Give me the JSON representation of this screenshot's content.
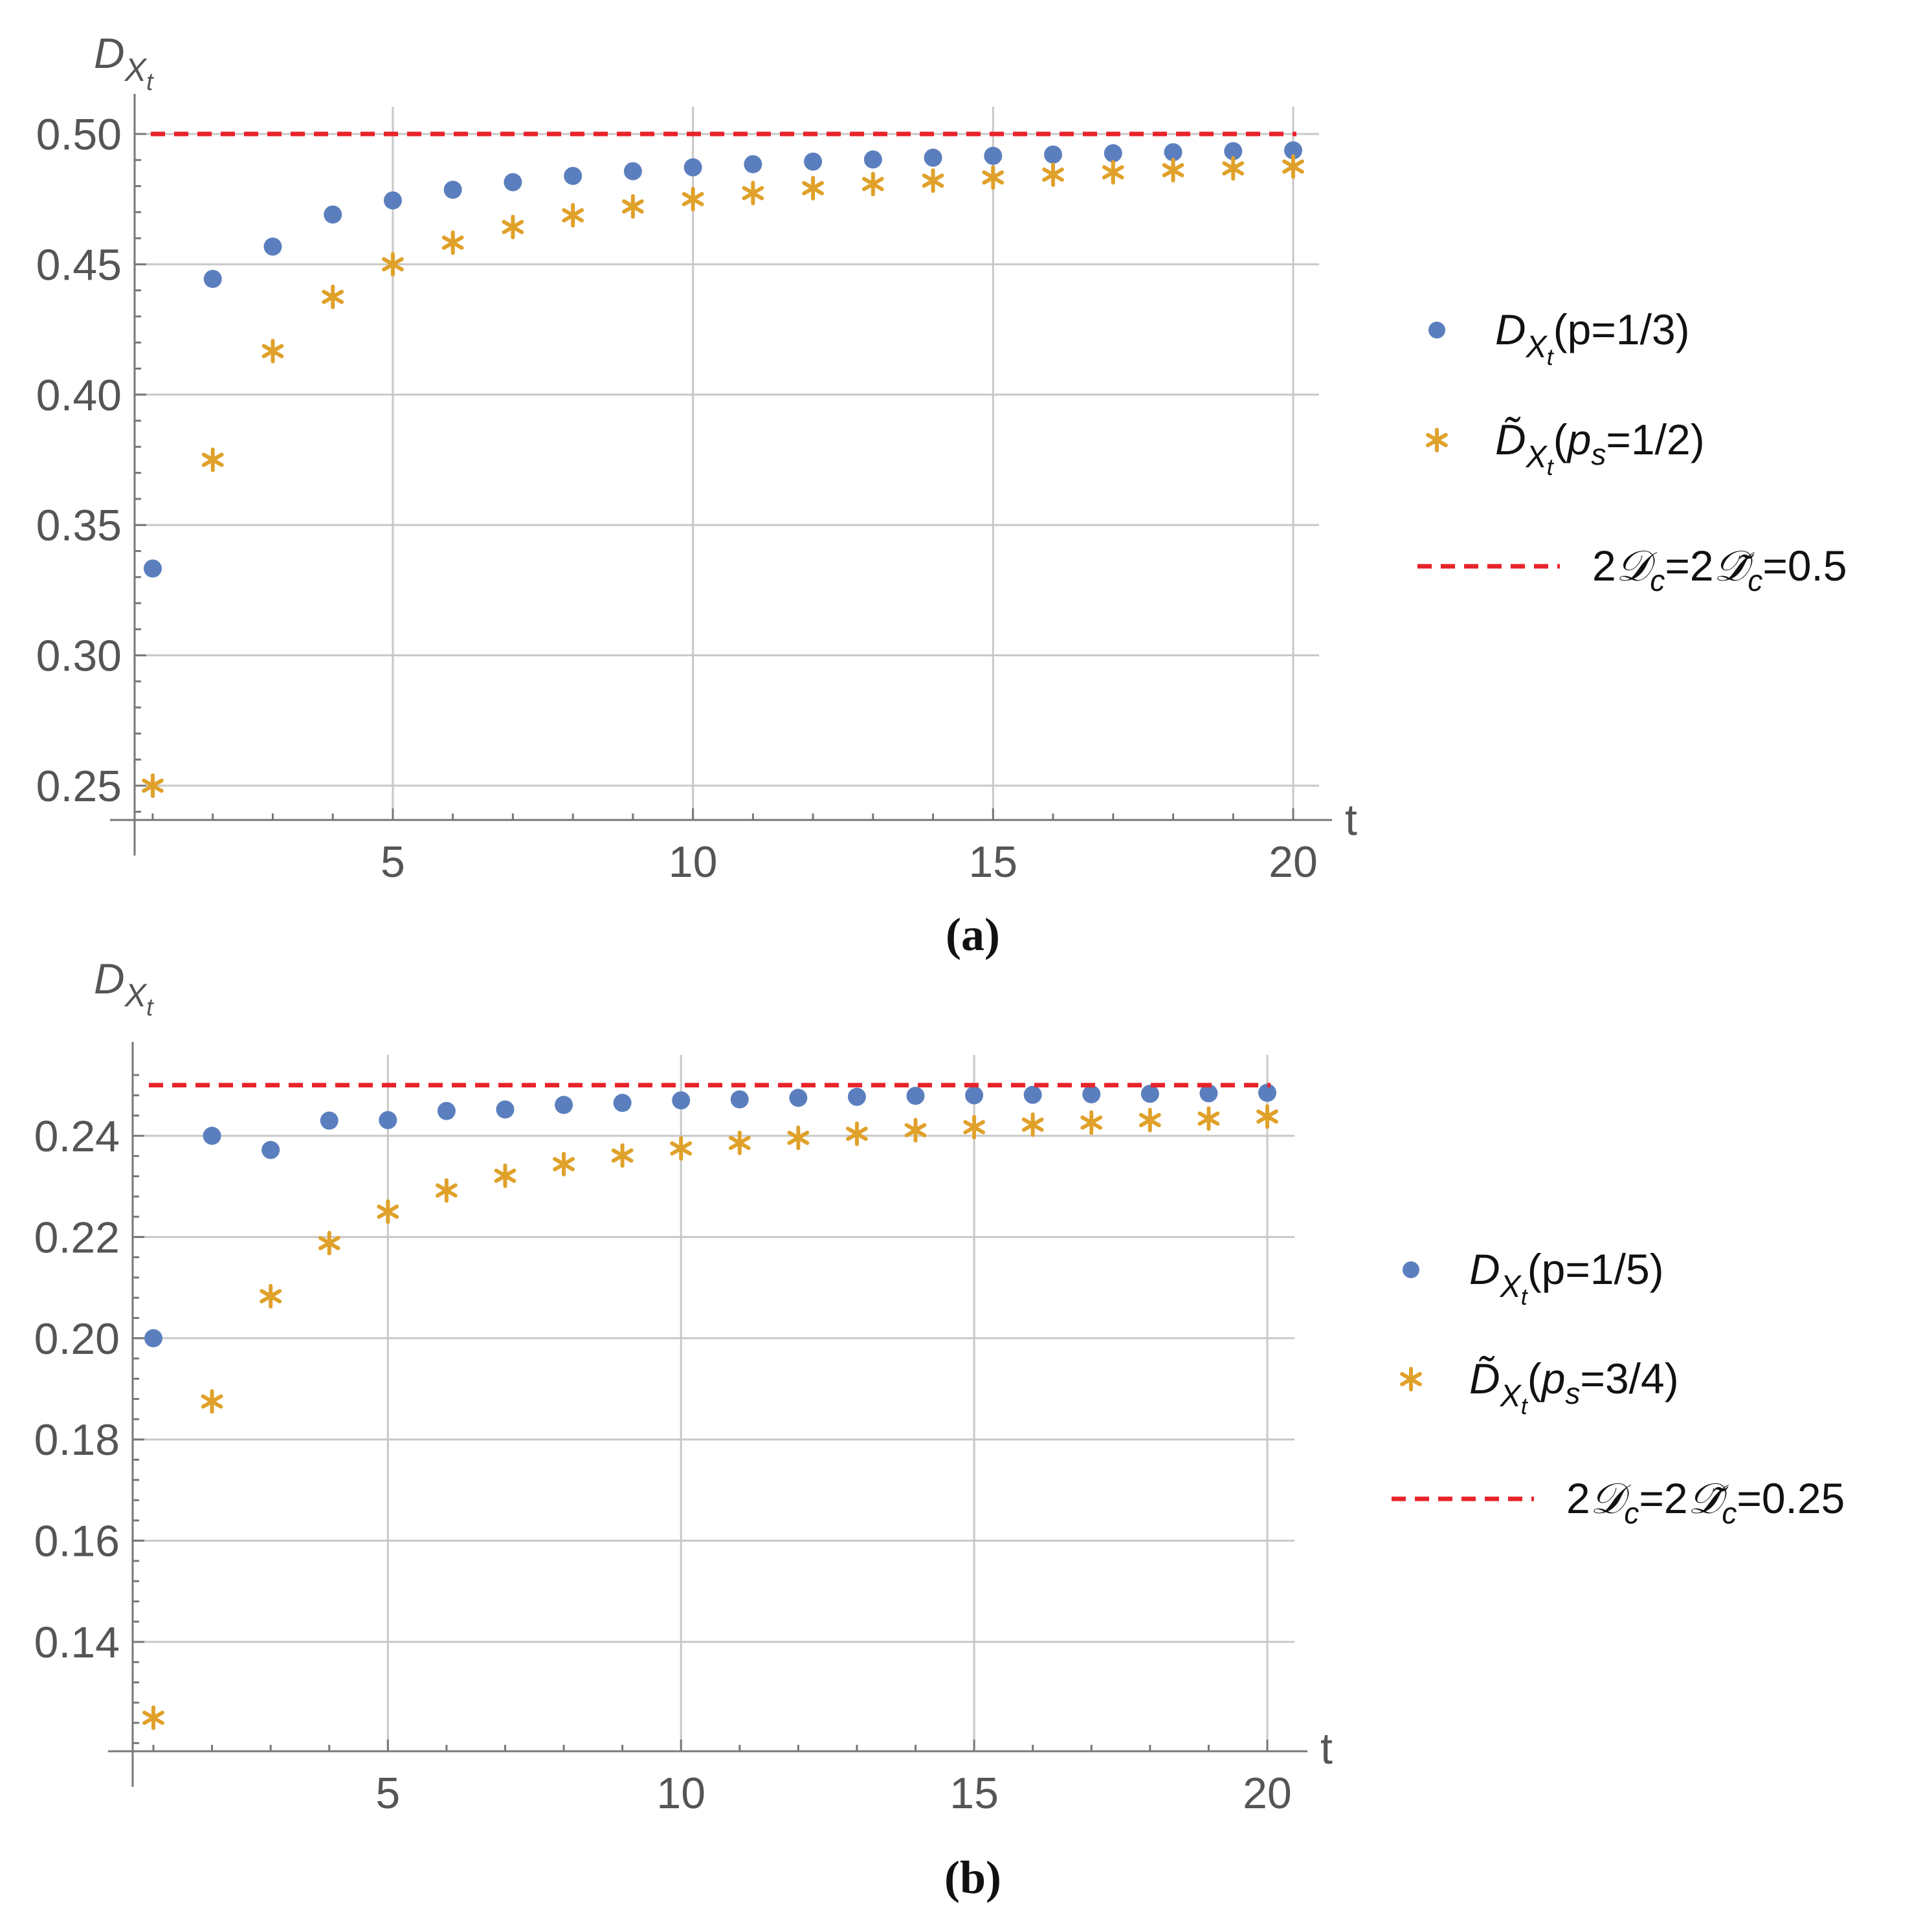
{
  "chart_data": [
    {
      "type": "scatter",
      "panel_label": "(a)",
      "xlabel": "t",
      "ylabel_main": "D",
      "ylabel_sub": "X",
      "ylabel_subsub": "t",
      "xlim": [
        0.25,
        20.5
      ],
      "ylim": [
        0.2365,
        0.5015
      ],
      "x_ticks": [
        5,
        10,
        15,
        20
      ],
      "x_tick_labels": [
        "5",
        "10",
        "15",
        "20"
      ],
      "y_ticks": [
        0.25,
        0.3,
        0.35,
        0.4,
        0.45,
        0.5
      ],
      "y_tick_labels": [
        "0.25",
        "0.30",
        "0.35",
        "0.40",
        "0.45",
        "0.50"
      ],
      "grid": true,
      "legend_position": "right",
      "x": [
        1,
        2,
        3,
        4,
        5,
        6,
        7,
        8,
        9,
        10,
        11,
        12,
        13,
        14,
        15,
        16,
        17,
        18,
        19,
        20
      ],
      "series": [
        {
          "name": "D_Xt(p=1/3)",
          "legend": {
            "pre": "",
            "sym": "D",
            "sub": "X",
            "subsub": "t",
            "post": "(p=1/3)"
          },
          "marker": "dot",
          "color": "#5b7fbe",
          "values": [
            0.3333,
            0.4444,
            0.4568,
            0.4691,
            0.4745,
            0.4786,
            0.4815,
            0.4839,
            0.4857,
            0.4872,
            0.4884,
            0.4894,
            0.4902,
            0.4909,
            0.4916,
            0.4921,
            0.4926,
            0.493,
            0.4934,
            0.4937
          ]
        },
        {
          "name": "D~_Xt(ps=1/2)",
          "legend": {
            "pre": "",
            "sym": "D̃",
            "sub": "X",
            "subsub": "t",
            "post": "(",
            "ital": "p",
            "italsub": "s",
            "post2": "=1/2)"
          },
          "marker": "star",
          "color": "#e0a12a",
          "values": [
            0.25,
            0.375,
            0.4167,
            0.4375,
            0.45,
            0.4583,
            0.4643,
            0.4688,
            0.4722,
            0.475,
            0.4773,
            0.4792,
            0.4808,
            0.4821,
            0.4833,
            0.4844,
            0.4853,
            0.4861,
            0.4868,
            0.4875
          ]
        },
        {
          "name": "2Dc=2D~c=0.5",
          "legend_text": "2𝒟c=2𝒟̃c=0.5",
          "legend": {
            "p1": "2",
            "s1": "𝒟",
            "sb1": "c",
            "p2": "=2",
            "s2": "𝒟̃",
            "sb2": "c",
            "p3": "=0.5"
          },
          "marker": "dashed-line",
          "color": "#e8232a",
          "value": 0.5
        }
      ]
    },
    {
      "type": "scatter",
      "panel_label": "(b)",
      "xlabel": "t",
      "ylabel_main": "D",
      "ylabel_sub": "X",
      "ylabel_subsub": "t",
      "xlim": [
        0.25,
        20.5
      ],
      "ylim": [
        0.1178,
        0.2535
      ],
      "x_ticks": [
        5,
        10,
        15,
        20
      ],
      "x_tick_labels": [
        "5",
        "10",
        "15",
        "20"
      ],
      "y_ticks": [
        0.14,
        0.16,
        0.18,
        0.2,
        0.22,
        0.24
      ],
      "y_tick_labels": [
        "0.14",
        "0.16",
        "0.18",
        "0.20",
        "0.22",
        "0.24"
      ],
      "grid": true,
      "legend_position": "right",
      "x": [
        1,
        2,
        3,
        4,
        5,
        6,
        7,
        8,
        9,
        10,
        11,
        12,
        13,
        14,
        15,
        16,
        17,
        18,
        19,
        20
      ],
      "series": [
        {
          "name": "D_Xt(p=1/5)",
          "legend": {
            "pre": "",
            "sym": "D",
            "sub": "X",
            "subsub": "t",
            "post": "(p=1/5)"
          },
          "marker": "dot",
          "color": "#5b7fbe",
          "values": [
            0.2,
            0.24,
            0.2372,
            0.243,
            0.2431,
            0.2449,
            0.2452,
            0.2461,
            0.2465,
            0.247,
            0.2472,
            0.2475,
            0.2477,
            0.2479,
            0.248,
            0.2481,
            0.2482,
            0.2483,
            0.2484,
            0.2485
          ]
        },
        {
          "name": "D~_Xt(ps=3/4)",
          "legend": {
            "pre": "",
            "sym": "D̃",
            "sub": "X",
            "subsub": "t",
            "post": "(",
            "ital": "p",
            "italsub": "s",
            "post2": "=3/4)"
          },
          "marker": "star",
          "color": "#e0a12a",
          "values": [
            0.125,
            0.1875,
            0.2083,
            0.2188,
            0.225,
            0.2292,
            0.2321,
            0.2344,
            0.2361,
            0.2375,
            0.2386,
            0.2396,
            0.2404,
            0.2411,
            0.2417,
            0.2422,
            0.2426,
            0.2431,
            0.2434,
            0.2438
          ]
        },
        {
          "name": "2Dc=2D~c=0.25",
          "legend_text": "2𝒟c=2𝒟̃c=0.25",
          "legend": {
            "p1": "2",
            "s1": "𝒟",
            "sb1": "c",
            "p2": "=2",
            "s2": "𝒟̃",
            "sb2": "c",
            "p3": "=0.25"
          },
          "marker": "dashed-line",
          "color": "#e8232a",
          "value": 0.25
        }
      ]
    }
  ]
}
